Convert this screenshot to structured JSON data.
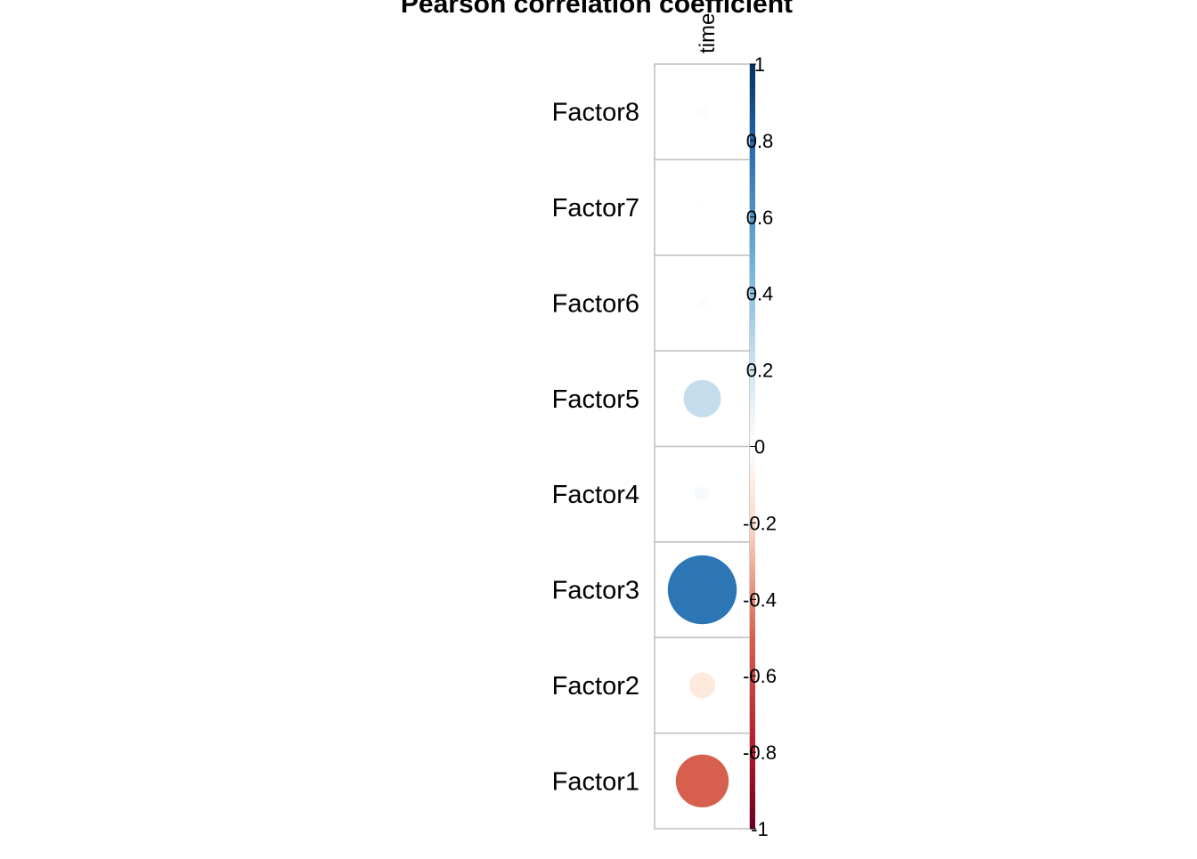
{
  "chart_data": {
    "type": "heatmap",
    "title": "Pearson correlation coefficient",
    "columns": [
      "time"
    ],
    "rows": [
      "Factor8",
      "Factor7",
      "Factor6",
      "Factor5",
      "Factor4",
      "Factor3",
      "Factor2",
      "Factor1"
    ],
    "values": [
      0.02,
      0.01,
      0.02,
      0.25,
      0.04,
      0.85,
      -0.12,
      -0.5
    ],
    "mark": "circle",
    "colorbar": {
      "range": [
        -1,
        1
      ],
      "ticks": [
        "1",
        "0.8",
        "0.6",
        "0.4",
        "0.2",
        "0",
        "-0.2",
        "-0.4",
        "-0.6",
        "-0.8",
        "-1"
      ],
      "tick_values": [
        1,
        0.8,
        0.6,
        0.4,
        0.2,
        0,
        -0.2,
        -0.4,
        -0.6,
        -0.8,
        -1
      ],
      "colors": {
        "neg_extreme": "#67001f",
        "neg_mid": "#d6604d",
        "neg_light": "#fddbc7",
        "zero": "#ffffff",
        "pos_light": "#d1e5f0",
        "pos_mid": "#2c76b5",
        "pos_extreme": "#053061"
      }
    },
    "grid": true
  }
}
